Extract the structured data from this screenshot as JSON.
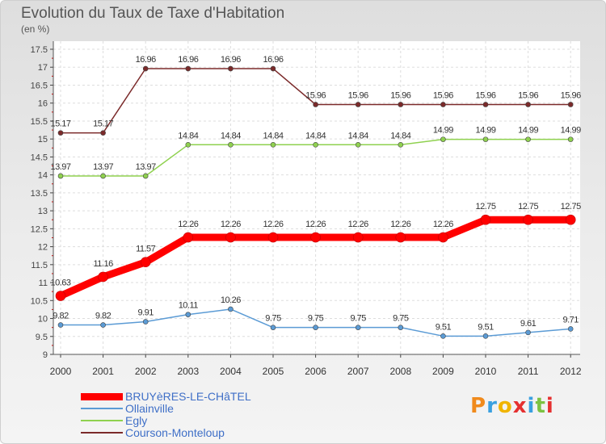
{
  "title": "Evolution du Taux de Taxe d'Habitation",
  "subtitle": "(en %)",
  "logo": {
    "text": "Proxiti",
    "colors": [
      "#f08a1c",
      "#3aa0e0",
      "#f0b400",
      "#e53030",
      "#3aa0e0",
      "#7cc242",
      "#e53030"
    ]
  },
  "chart_data": {
    "type": "line",
    "x": [
      "2000",
      "2001",
      "2002",
      "2003",
      "2004",
      "2005",
      "2006",
      "2007",
      "2008",
      "2009",
      "2010",
      "2011",
      "2012"
    ],
    "ylim": [
      9,
      17.5
    ],
    "yticks": [
      "9",
      "9.5",
      "10",
      "10.5",
      "11",
      "11.5",
      "12",
      "12.5",
      "13",
      "13.5",
      "14",
      "14.5",
      "15",
      "15.5",
      "16",
      "16.5",
      "17",
      "17.5"
    ],
    "grid": true,
    "legend_position": "bottom-left",
    "series": [
      {
        "name": "BRUYèRES-LE-CHâTEL",
        "color": "#ff0000",
        "emphasis": true,
        "values": [
          10.63,
          11.16,
          11.57,
          12.26,
          12.26,
          12.26,
          12.26,
          12.26,
          12.26,
          12.26,
          12.75,
          12.75,
          12.75
        ],
        "labels": [
          "10.63",
          "11.16",
          "11.57",
          "12.26",
          "12.26",
          "12.26",
          "12.26",
          "12.26",
          "12.26",
          "12.26",
          "12.75",
          "12.75",
          "12.75"
        ]
      },
      {
        "name": "Ollainville",
        "color": "#5b9bd5",
        "emphasis": false,
        "values": [
          9.82,
          9.82,
          9.91,
          10.11,
          10.26,
          9.75,
          9.75,
          9.75,
          9.75,
          9.51,
          9.51,
          9.61,
          9.71
        ],
        "labels": [
          "9.82",
          "9.82",
          "9.91",
          "10.11",
          "10.26",
          "9.75",
          "9.75",
          "9.75",
          "9.75",
          "9.51",
          "9.51",
          "9.61",
          "9.71"
        ]
      },
      {
        "name": "Egly",
        "color": "#8fd14f",
        "emphasis": false,
        "values": [
          13.97,
          13.97,
          13.97,
          14.84,
          14.84,
          14.84,
          14.84,
          14.84,
          14.84,
          14.99,
          14.99,
          14.99,
          14.99
        ],
        "labels": [
          "13.97",
          "13.97",
          "13.97",
          "14.84",
          "14.84",
          "14.84",
          "14.84",
          "14.84",
          "14.84",
          "14.99",
          "14.99",
          "14.99",
          "14.99"
        ]
      },
      {
        "name": "Courson-Monteloup",
        "color": "#7b2a2a",
        "emphasis": false,
        "values": [
          15.17,
          15.17,
          16.96,
          16.96,
          16.96,
          16.96,
          15.96,
          15.96,
          15.96,
          15.96,
          15.96,
          15.96,
          15.96
        ],
        "labels": [
          "15.17",
          "15.17",
          "16.96",
          "16.96",
          "16.96",
          "16.96",
          "15.96",
          "15.96",
          "15.96",
          "15.96",
          "15.96",
          "15.96",
          "15.96"
        ]
      }
    ]
  }
}
